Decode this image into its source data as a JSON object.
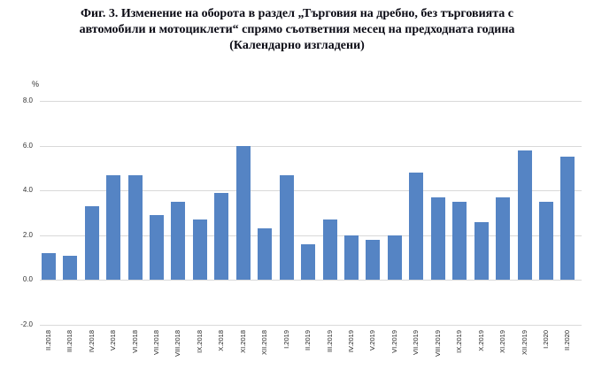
{
  "figure": {
    "title_lines": [
      "Фиг. 3. Изменение на оборота в раздел „Търговия на дребно, без търговията с",
      "автомобили и мотоциклети“ спрямо съответния месец на предходната година",
      "(Календарно изгладени)"
    ],
    "percent_label": "%"
  },
  "chart_data": {
    "type": "bar",
    "title": "Фиг. 3. Изменение на оборота в раздел „Търговия на дребно, без търговията с автомобили и мотоциклети“ спрямо съответния месец на предходната година (Календарно изгладени)",
    "categories": [
      "II.2018",
      "III.2018",
      "IV.2018",
      "V.2018",
      "VI.2018",
      "VII.2018",
      "VIII.2018",
      "IX.2018",
      "X.2018",
      "XI.2018",
      "XII.2018",
      "I.2019",
      "II.2019",
      "III.2019",
      "IV.2019",
      "V.2019",
      "VI.2019",
      "VII.2019",
      "VIII.2019",
      "IX.2019",
      "X.2019",
      "XI.2019",
      "XII.2019",
      "I.2020",
      "II.2020"
    ],
    "values": [
      1.2,
      1.1,
      3.3,
      4.7,
      4.7,
      2.9,
      3.5,
      2.7,
      3.9,
      6.0,
      2.3,
      4.7,
      1.6,
      2.7,
      2.0,
      1.8,
      2.0,
      4.8,
      3.7,
      3.5,
      2.6,
      3.7,
      5.8,
      3.5,
      5.5
    ],
    "xlabel": "",
    "ylabel": "%",
    "ylim": [
      -2.0,
      8.0
    ],
    "ytick_labels": [
      "8.0",
      "6.0",
      "4.0",
      "2.0",
      "0.0",
      "-2.0"
    ],
    "ytick_values": [
      8,
      6,
      4,
      2,
      0,
      -2
    ],
    "grid": true,
    "legend": "none",
    "bar_color": "#5584c4",
    "gridline_color": "#d9d9d9",
    "tick_color": "#333333"
  }
}
